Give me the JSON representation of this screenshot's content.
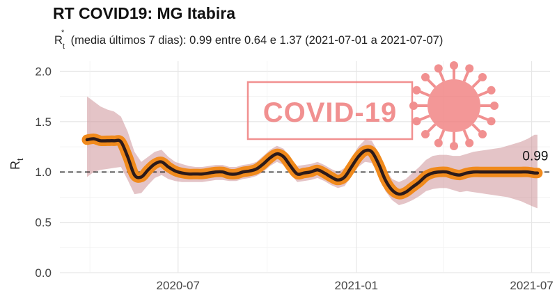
{
  "chart_data": {
    "type": "line",
    "title": "RT COVID19: MG Itabira",
    "subtitle_prefix": "R",
    "subtitle_sub": "t",
    "subtitle_sup": "*",
    "subtitle_text": "(media últimos 7 dias): 0.99 entre 0.64 e 1.37 (2021-07-01 a 2021-07-07)",
    "ylabel_main": "R",
    "ylabel_sub": "t",
    "xlabel": "",
    "ylim": [
      0,
      2.1
    ],
    "yticks": [
      "0.0",
      "0.5",
      "1.0",
      "1.5",
      "2.0"
    ],
    "ytick_values": [
      0,
      0.5,
      1.0,
      1.5,
      2.0
    ],
    "xticks": [
      "2020-07",
      "2021-01",
      "2021-07"
    ],
    "xtick_dates": [
      "2020-07-01",
      "2021-01-01",
      "2021-07-01"
    ],
    "xlim": [
      "2020-03-01",
      "2021-07-20"
    ],
    "reference_line": 1.0,
    "end_label": "0.99",
    "watermark_text": "COVID-19",
    "colors": {
      "line": "#2b1a1a",
      "highlight": "#f08a1c",
      "band": "#c98a8f",
      "reference": "#222222",
      "grid": "#e6e6e6",
      "watermark": "#ef7d7d"
    },
    "series": [
      {
        "x": [
          "2020-03-29",
          "2020-04-05",
          "2020-04-12",
          "2020-04-19",
          "2020-04-26",
          "2020-05-03",
          "2020-05-10",
          "2020-05-17",
          "2020-05-24",
          "2020-05-31",
          "2020-06-07",
          "2020-06-14",
          "2020-06-21",
          "2020-06-28",
          "2020-07-05",
          "2020-07-12",
          "2020-07-19",
          "2020-07-26",
          "2020-08-02",
          "2020-08-09",
          "2020-08-16",
          "2020-08-23",
          "2020-08-30",
          "2020-09-06",
          "2020-09-13",
          "2020-09-20",
          "2020-09-27",
          "2020-10-04",
          "2020-10-11",
          "2020-10-18",
          "2020-10-25",
          "2020-11-01",
          "2020-11-08",
          "2020-11-15",
          "2020-11-22",
          "2020-11-29",
          "2020-12-06",
          "2020-12-13",
          "2020-12-20",
          "2020-12-27",
          "2021-01-03",
          "2021-01-10",
          "2021-01-17",
          "2021-01-24",
          "2021-01-31",
          "2021-02-07",
          "2021-02-14",
          "2021-02-21",
          "2021-02-28",
          "2021-03-07",
          "2021-03-14",
          "2021-03-21",
          "2021-03-28",
          "2021-04-04",
          "2021-04-11",
          "2021-04-18",
          "2021-04-25",
          "2021-05-02",
          "2021-05-09",
          "2021-05-16",
          "2021-05-23",
          "2021-05-30",
          "2021-06-06",
          "2021-06-13",
          "2021-06-20",
          "2021-06-27",
          "2021-07-04",
          "2021-07-07"
        ],
        "values": [
          1.32,
          1.33,
          1.31,
          1.31,
          1.31,
          1.3,
          1.15,
          0.97,
          0.95,
          1.02,
          1.08,
          1.1,
          1.05,
          1.01,
          0.99,
          0.98,
          0.98,
          0.98,
          0.99,
          1.0,
          1.0,
          0.98,
          0.98,
          1.0,
          1.01,
          1.03,
          1.08,
          1.14,
          1.18,
          1.15,
          1.06,
          0.98,
          0.99,
          1.0,
          1.02,
          0.99,
          0.95,
          0.92,
          0.95,
          1.05,
          1.15,
          1.21,
          1.2,
          1.08,
          0.92,
          0.82,
          0.78,
          0.8,
          0.85,
          0.9,
          0.96,
          0.99,
          1.0,
          1.0,
          0.98,
          0.97,
          0.99,
          1.0,
          1.0,
          1.0,
          1.0,
          1.0,
          1.0,
          1.0,
          1.0,
          1.0,
          0.99,
          0.99
        ],
        "upper": [
          1.75,
          1.7,
          1.65,
          1.62,
          1.6,
          1.55,
          1.4,
          1.2,
          1.1,
          1.15,
          1.2,
          1.22,
          1.15,
          1.1,
          1.08,
          1.06,
          1.05,
          1.05,
          1.06,
          1.07,
          1.07,
          1.05,
          1.05,
          1.07,
          1.08,
          1.1,
          1.16,
          1.22,
          1.26,
          1.23,
          1.14,
          1.06,
          1.07,
          1.08,
          1.1,
          1.07,
          1.03,
          1.0,
          1.04,
          1.14,
          1.25,
          1.32,
          1.31,
          1.19,
          1.03,
          0.93,
          0.9,
          0.93,
          0.99,
          1.05,
          1.12,
          1.16,
          1.17,
          1.17,
          1.16,
          1.16,
          1.18,
          1.2,
          1.21,
          1.22,
          1.23,
          1.24,
          1.26,
          1.28,
          1.3,
          1.33,
          1.37,
          1.37
        ],
        "lower": [
          0.95,
          1.0,
          1.02,
          1.03,
          1.04,
          1.05,
          0.92,
          0.78,
          0.79,
          0.87,
          0.94,
          0.97,
          0.93,
          0.91,
          0.9,
          0.9,
          0.9,
          0.9,
          0.91,
          0.92,
          0.92,
          0.91,
          0.91,
          0.93,
          0.94,
          0.96,
          1.0,
          1.06,
          1.1,
          1.07,
          0.98,
          0.9,
          0.91,
          0.92,
          0.94,
          0.91,
          0.87,
          0.84,
          0.86,
          0.96,
          1.05,
          1.1,
          1.09,
          0.97,
          0.81,
          0.72,
          0.67,
          0.69,
          0.72,
          0.76,
          0.81,
          0.83,
          0.84,
          0.84,
          0.82,
          0.8,
          0.81,
          0.8,
          0.79,
          0.78,
          0.77,
          0.76,
          0.75,
          0.73,
          0.71,
          0.68,
          0.65,
          0.64
        ]
      }
    ],
    "grid": true
  }
}
